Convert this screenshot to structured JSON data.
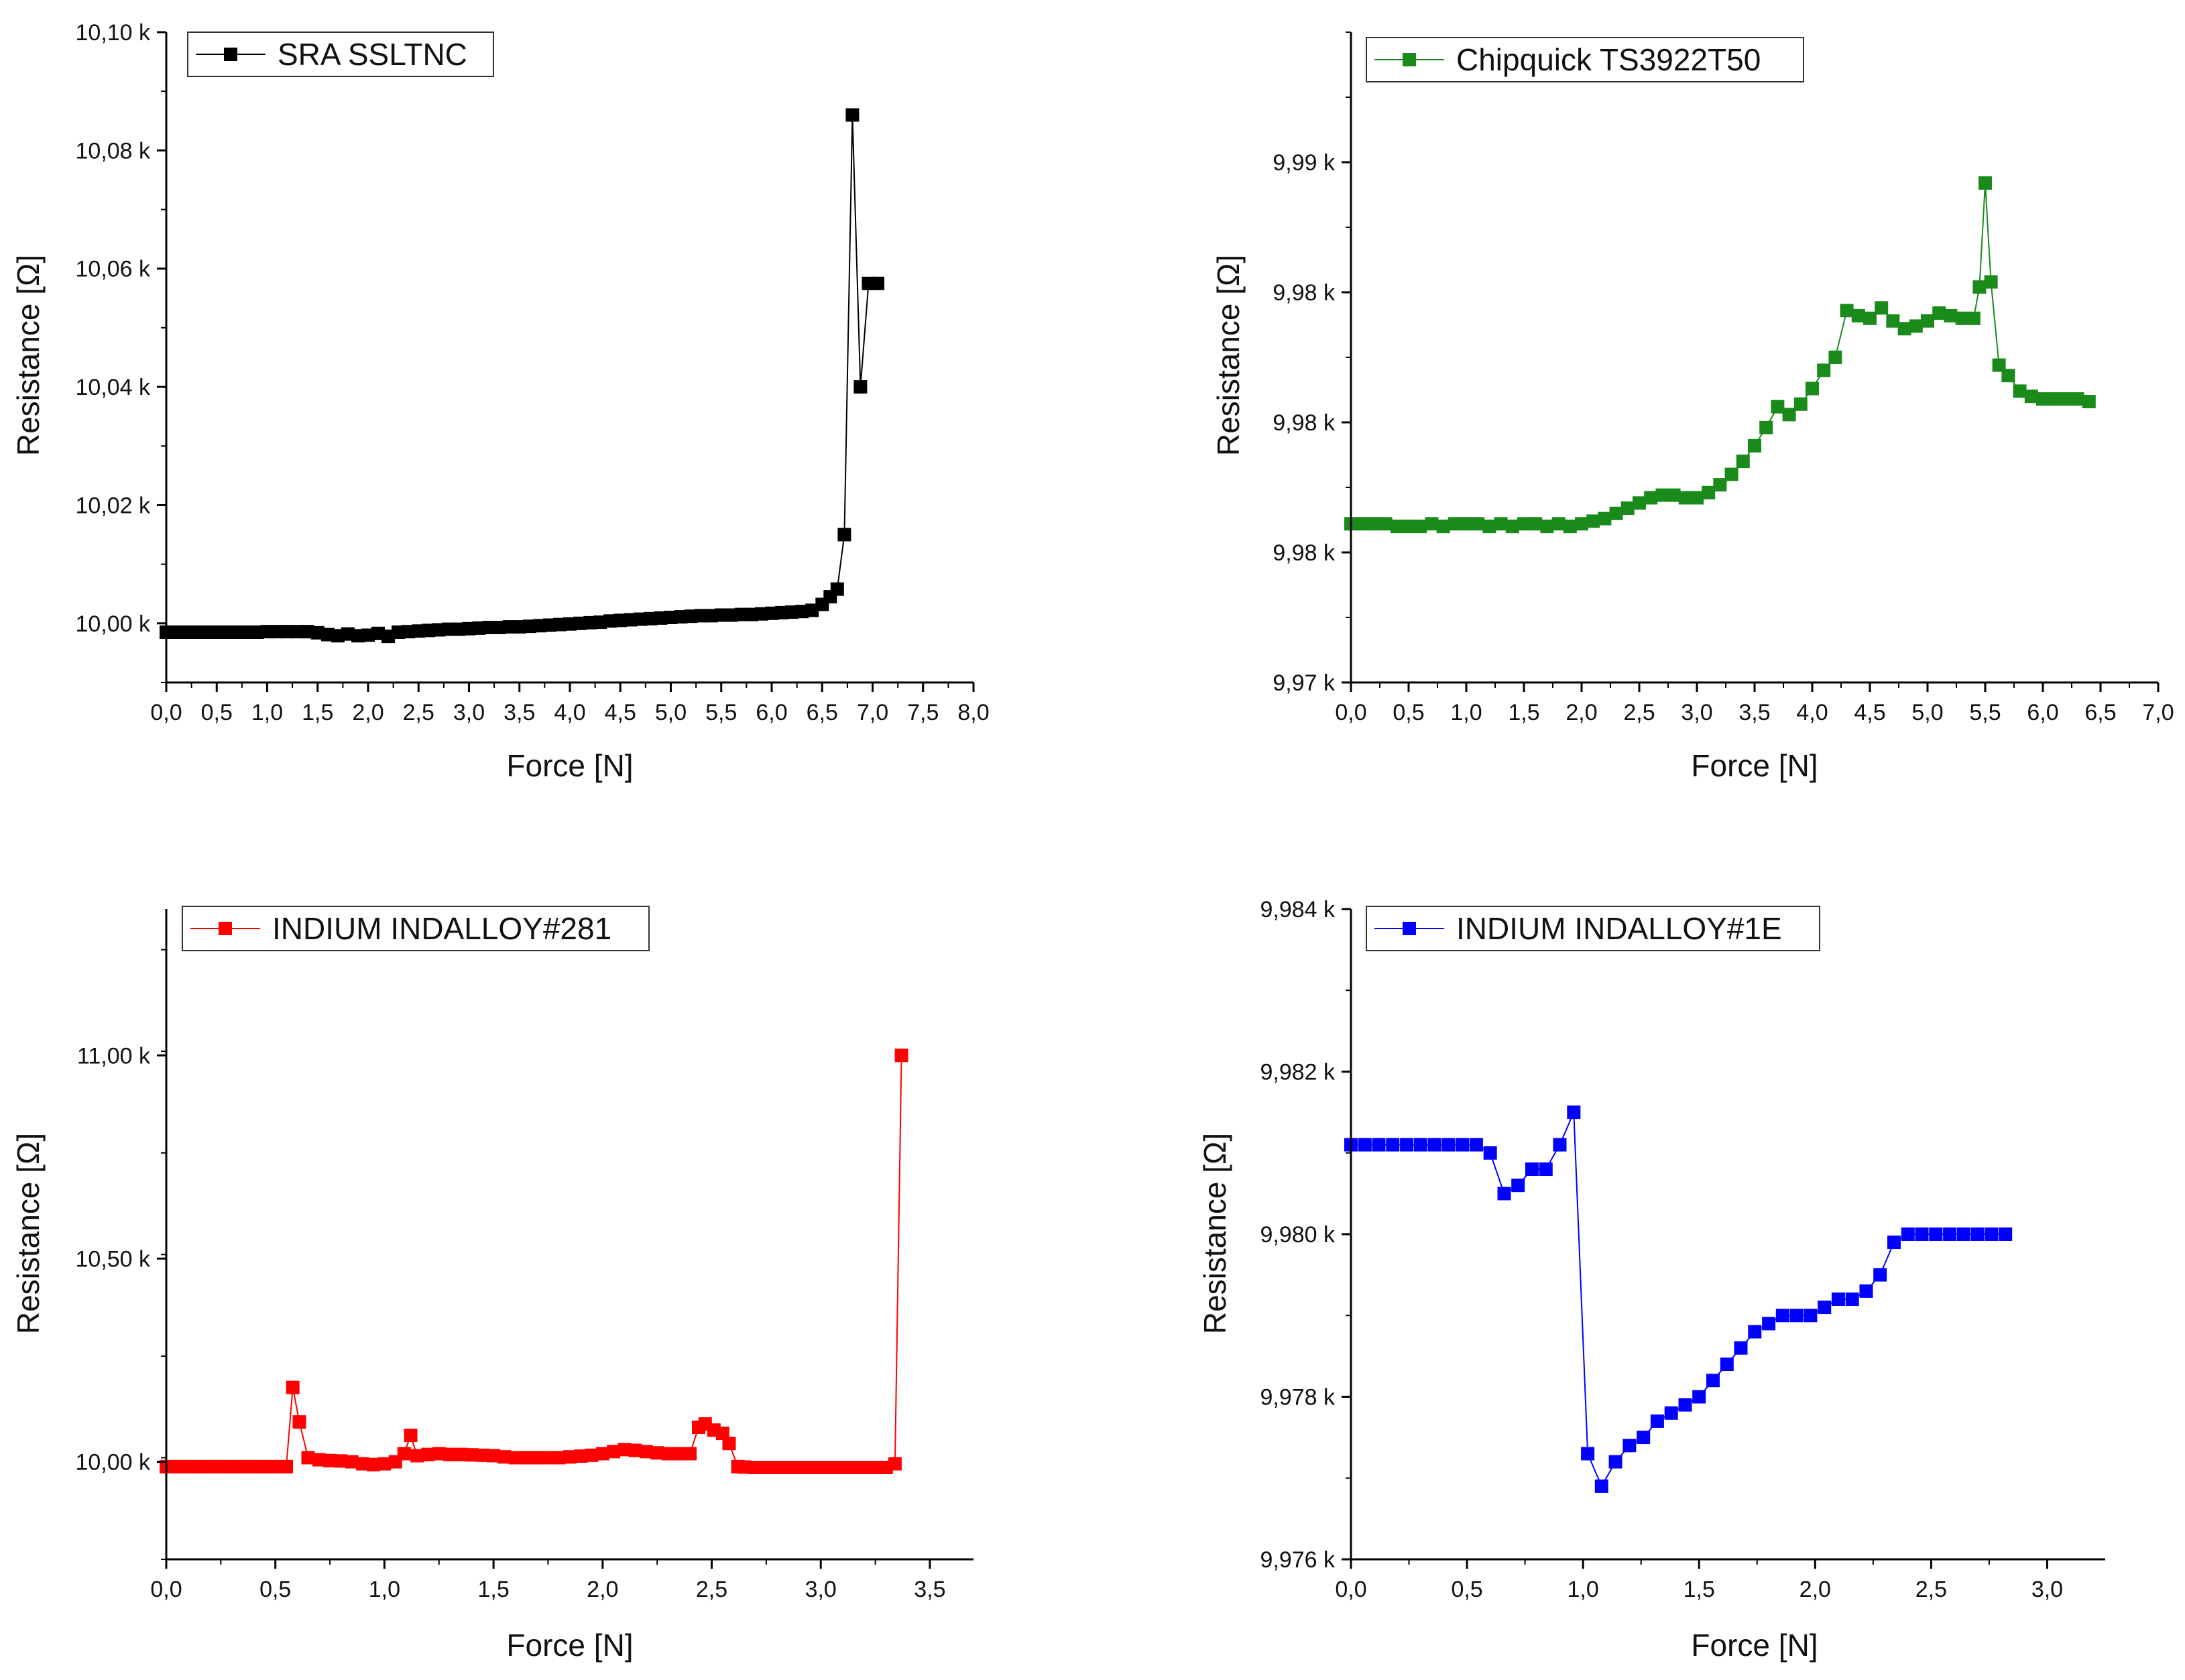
{
  "chart_data": [
    {
      "type": "line",
      "id": "sra",
      "color": "#000000",
      "legend": "SRA SSLTNC",
      "xlabel": "Force [N]",
      "ylabel": "Resistance [Ω]",
      "xlim": [
        0,
        8
      ],
      "ylim": [
        9990,
        10100
      ],
      "x_ticks": [
        0,
        0.5,
        1,
        1.5,
        2,
        2.5,
        3,
        3.5,
        4,
        4.5,
        5,
        5.5,
        6,
        6.5,
        7,
        7.5,
        8
      ],
      "x_tick_labels": [
        "0,0",
        "0,5",
        "1,0",
        "1,5",
        "2,0",
        "2,5",
        "3,0",
        "3,5",
        "4,0",
        "4,5",
        "5,0",
        "5,5",
        "6,0",
        "6,5",
        "7,0",
        "7,5",
        "8,0"
      ],
      "y_ticks": [
        10000,
        10020,
        10040,
        10060,
        10080,
        10100
      ],
      "y_tick_labels": [
        "10,00 k",
        "10,02 k",
        "10,04 k",
        "10,06 k",
        "10,08 k",
        "10,10 k"
      ],
      "x": [
        0.0,
        0.1,
        0.2,
        0.3,
        0.4,
        0.5,
        0.6,
        0.7,
        0.8,
        0.9,
        1.0,
        1.1,
        1.2,
        1.3,
        1.4,
        1.5,
        1.6,
        1.7,
        1.8,
        1.9,
        2.0,
        2.1,
        2.2,
        2.3,
        2.4,
        2.5,
        2.6,
        2.7,
        2.8,
        2.9,
        3.0,
        3.1,
        3.2,
        3.3,
        3.4,
        3.5,
        3.6,
        3.7,
        3.8,
        3.9,
        4.0,
        4.1,
        4.2,
        4.3,
        4.4,
        4.5,
        4.6,
        4.7,
        4.8,
        4.9,
        5.0,
        5.1,
        5.2,
        5.3,
        5.4,
        5.5,
        5.6,
        5.7,
        5.8,
        5.9,
        6.0,
        6.1,
        6.2,
        6.3,
        6.4,
        6.5,
        6.58,
        6.65,
        6.72,
        6.8,
        6.88,
        6.96,
        7.05
      ],
      "y": [
        9998.5,
        9998.5,
        9998.5,
        9998.5,
        9998.5,
        9998.5,
        9998.5,
        9998.5,
        9998.5,
        9998.5,
        9998.6,
        9998.6,
        9998.6,
        9998.6,
        9998.6,
        9998.4,
        9998.1,
        9997.9,
        9998.2,
        9997.9,
        9998.0,
        9998.3,
        9997.8,
        9998.5,
        9998.6,
        9998.7,
        9998.8,
        9998.9,
        9999.0,
        9999.0,
        9999.1,
        9999.2,
        9999.3,
        9999.3,
        9999.4,
        9999.4,
        9999.5,
        9999.6,
        9999.7,
        9999.8,
        9999.9,
        10000.0,
        10000.1,
        10000.2,
        10000.4,
        10000.5,
        10000.6,
        10000.7,
        10000.8,
        10000.9,
        10001.0,
        10001.1,
        10001.2,
        10001.3,
        10001.3,
        10001.4,
        10001.4,
        10001.5,
        10001.5,
        10001.6,
        10001.7,
        10001.8,
        10001.9,
        10002.0,
        10002.2,
        10003.2,
        10004.5,
        10005.8,
        10015.0,
        10086.0,
        10040.0,
        10057.5,
        10057.5
      ]
    },
    {
      "type": "line",
      "id": "chipquick",
      "color": "#1a8a1a",
      "legend": "Chipquick TS3922T50",
      "xlabel": "Force [N]",
      "ylabel": "Resistance [Ω]",
      "xlim": [
        0,
        7
      ],
      "ylim": [
        9970,
        9995
      ],
      "x_ticks": [
        0,
        0.5,
        1,
        1.5,
        2,
        2.5,
        3,
        3.5,
        4,
        4.5,
        5,
        5.5,
        6,
        6.5,
        7
      ],
      "x_tick_labels": [
        "0,0",
        "0,5",
        "1,0",
        "1,5",
        "2,0",
        "2,5",
        "3,0",
        "3,5",
        "4,0",
        "4,5",
        "5,0",
        "5,5",
        "6,0",
        "6,5",
        "7,0"
      ],
      "y_ticks": [
        9970,
        9975,
        9980,
        9985,
        9990
      ],
      "y_tick_labels": [
        "9,97 k",
        "9,98 k",
        "9,98 k",
        "9,98 k",
        "9,99 k"
      ],
      "x": [
        0.0,
        0.1,
        0.2,
        0.3,
        0.4,
        0.5,
        0.6,
        0.7,
        0.8,
        0.9,
        1.0,
        1.1,
        1.2,
        1.3,
        1.4,
        1.5,
        1.6,
        1.7,
        1.8,
        1.9,
        2.0,
        2.1,
        2.2,
        2.3,
        2.4,
        2.5,
        2.6,
        2.7,
        2.8,
        2.9,
        3.0,
        3.1,
        3.2,
        3.3,
        3.4,
        3.5,
        3.6,
        3.7,
        3.8,
        3.9,
        4.0,
        4.1,
        4.2,
        4.3,
        4.4,
        4.5,
        4.6,
        4.7,
        4.8,
        4.9,
        5.0,
        5.1,
        5.2,
        5.3,
        5.4,
        5.45,
        5.5,
        5.55,
        5.62,
        5.7,
        5.8,
        5.9,
        6.0,
        6.1,
        6.2,
        6.3,
        6.4
      ],
      "y": [
        9976.1,
        9976.1,
        9976.1,
        9976.1,
        9976.0,
        9976.0,
        9976.0,
        9976.1,
        9976.0,
        9976.1,
        9976.1,
        9976.1,
        9976.0,
        9976.1,
        9976.0,
        9976.1,
        9976.1,
        9976.0,
        9976.1,
        9976.0,
        9976.1,
        9976.2,
        9976.3,
        9976.5,
        9976.7,
        9976.9,
        9977.1,
        9977.2,
        9977.2,
        9977.1,
        9977.1,
        9977.3,
        9977.6,
        9978.0,
        9978.5,
        9979.1,
        9979.8,
        9980.6,
        9980.3,
        9980.7,
        9981.3,
        9982.0,
        9982.5,
        9984.3,
        9984.1,
        9984.0,
        9984.4,
        9983.9,
        9983.6,
        9983.7,
        9983.9,
        9984.2,
        9984.1,
        9984.0,
        9984.0,
        9985.2,
        9989.2,
        9985.4,
        9982.2,
        9981.8,
        9981.2,
        9981.0,
        9980.9,
        9980.9,
        9980.9,
        9980.9,
        9980.8
      ]
    },
    {
      "type": "line",
      "id": "indium281",
      "color": "#ff0000",
      "legend": "INDIUM INDALLOY#281",
      "xlabel": "Force [N]",
      "ylabel": "Resistance [Ω]",
      "xlim": [
        0,
        3.7
      ],
      "ylim": [
        9760,
        11360
      ],
      "x_ticks": [
        0,
        0.5,
        1,
        1.5,
        2,
        2.5,
        3,
        3.5
      ],
      "x_tick_labels": [
        "0,0",
        "0,5",
        "1,0",
        "1,5",
        "2,0",
        "2,5",
        "3,0",
        "3,5"
      ],
      "y_ticks": [
        10000,
        10500,
        11000
      ],
      "y_tick_labels": [
        "10,00 k",
        "10,50 k",
        "11,00 k"
      ],
      "x": [
        0.0,
        0.05,
        0.1,
        0.15,
        0.2,
        0.25,
        0.3,
        0.35,
        0.4,
        0.45,
        0.5,
        0.55,
        0.58,
        0.61,
        0.65,
        0.7,
        0.75,
        0.8,
        0.85,
        0.9,
        0.95,
        1.0,
        1.05,
        1.09,
        1.12,
        1.15,
        1.2,
        1.25,
        1.3,
        1.35,
        1.4,
        1.45,
        1.5,
        1.55,
        1.6,
        1.65,
        1.7,
        1.75,
        1.8,
        1.85,
        1.9,
        1.95,
        2.0,
        2.05,
        2.1,
        2.15,
        2.2,
        2.25,
        2.3,
        2.35,
        2.4,
        2.44,
        2.47,
        2.51,
        2.55,
        2.58,
        2.62,
        2.65,
        2.7,
        2.75,
        2.8,
        2.85,
        2.9,
        2.95,
        3.0,
        3.05,
        3.1,
        3.15,
        3.2,
        3.25,
        3.3,
        3.34,
        3.37
      ],
      "y": [
        9988,
        9988,
        9988,
        9988,
        9988,
        9988,
        9988,
        9988,
        9988,
        9988,
        9988,
        9988,
        10183,
        10098,
        10010,
        10005,
        10003,
        10002,
        10000,
        9995,
        9993,
        9995,
        10000,
        10020,
        10065,
        10015,
        10018,
        10020,
        10018,
        10018,
        10017,
        10016,
        10015,
        10012,
        10010,
        10010,
        10010,
        10010,
        10010,
        10012,
        10014,
        10016,
        10020,
        10025,
        10030,
        10028,
        10025,
        10022,
        10020,
        10020,
        10020,
        10085,
        10093,
        10078,
        10070,
        10045,
        9988,
        9987,
        9986,
        9986,
        9986,
        9986,
        9986,
        9986,
        9986,
        9986,
        9986,
        9986,
        9986,
        9986,
        9986,
        9995,
        11000
      ]
    },
    {
      "type": "line",
      "id": "indium1e",
      "color": "#0000ff",
      "legend": "INDIUM INDALLOY#1E",
      "xlabel": "Force [N]",
      "ylabel": "Resistance [Ω]",
      "xlim": [
        0,
        3.25
      ],
      "ylim": [
        9976,
        9984
      ],
      "x_ticks": [
        0,
        0.5,
        1,
        1.5,
        2,
        2.5,
        3
      ],
      "x_tick_labels": [
        "0,0",
        "0,5",
        "1,0",
        "1,5",
        "2,0",
        "2,5",
        "3,0"
      ],
      "y_ticks": [
        9976,
        9978,
        9980,
        9982,
        9984
      ],
      "y_tick_labels": [
        "9,976 k",
        "9,978 k",
        "9,980 k",
        "9,982 k",
        "9,984 k"
      ],
      "x": [
        0.0,
        0.06,
        0.12,
        0.18,
        0.24,
        0.3,
        0.36,
        0.42,
        0.48,
        0.54,
        0.6,
        0.66,
        0.72,
        0.78,
        0.84,
        0.9,
        0.96,
        1.02,
        1.08,
        1.14,
        1.2,
        1.26,
        1.32,
        1.38,
        1.44,
        1.5,
        1.56,
        1.62,
        1.68,
        1.74,
        1.8,
        1.86,
        1.92,
        1.98,
        2.04,
        2.1,
        2.16,
        2.22,
        2.28,
        2.34,
        2.4,
        2.46,
        2.52,
        2.58,
        2.64,
        2.7,
        2.76,
        2.82
      ],
      "y": [
        9981.1,
        9981.1,
        9981.1,
        9981.1,
        9981.1,
        9981.1,
        9981.1,
        9981.1,
        9981.1,
        9981.1,
        9981.0,
        9980.5,
        9980.6,
        9980.8,
        9980.8,
        9981.1,
        9981.5,
        9977.3,
        9976.9,
        9977.2,
        9977.4,
        9977.5,
        9977.7,
        9977.8,
        9977.9,
        9978.0,
        9978.2,
        9978.4,
        9978.6,
        9978.8,
        9978.9,
        9979.0,
        9979.0,
        9979.0,
        9979.1,
        9979.2,
        9979.2,
        9979.3,
        9979.5,
        9979.9,
        9980.0,
        9980.0,
        9980.0,
        9980.0,
        9980.0,
        9980.0,
        9980.0,
        9980.0
      ]
    }
  ]
}
